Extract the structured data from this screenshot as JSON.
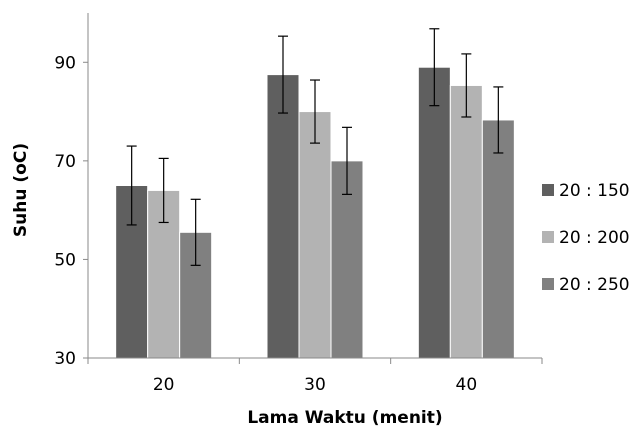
{
  "chart_data": {
    "type": "bar",
    "title": "",
    "xlabel": "Lama Waktu (menit)",
    "ylabel": "Suhu (oC)",
    "categories": [
      "20",
      "30",
      "40"
    ],
    "ylim": [
      30,
      100
    ],
    "yticks": [
      30,
      50,
      70,
      90
    ],
    "grid": false,
    "legend_position": "right",
    "series": [
      {
        "name": "20 : 150",
        "color": "#5f5f5f",
        "values": [
          65,
          87.5,
          89
        ],
        "error": [
          8,
          7.8,
          7.8
        ]
      },
      {
        "name": "20 : 200",
        "color": "#b3b3b3",
        "values": [
          64,
          80,
          85.3
        ],
        "error": [
          6.5,
          6.4,
          6.4
        ]
      },
      {
        "name": "20 : 250",
        "color": "#808080",
        "values": [
          55.5,
          70,
          78.3
        ],
        "error": [
          6.7,
          6.8,
          6.7
        ]
      }
    ]
  }
}
